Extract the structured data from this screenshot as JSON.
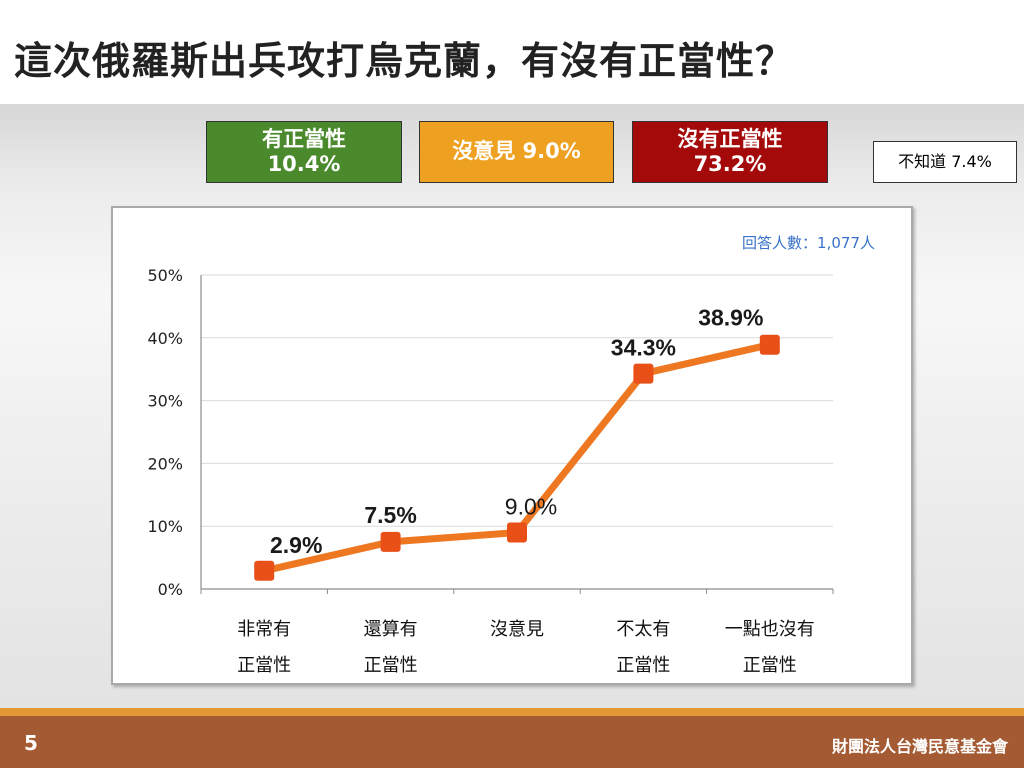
{
  "slide": {
    "title": "這次俄羅斯出兵攻打烏克蘭，有沒有正當性？",
    "page_number": "5",
    "organization": "財團法人台灣民意基金會"
  },
  "summary": {
    "legit": {
      "line1": "有正當性",
      "line2": "10.4%",
      "color": "#4a8a2c"
    },
    "no_opinion": {
      "text": "沒意見 9.0%",
      "color": "#eea020"
    },
    "illegit": {
      "line1": "沒有正當性",
      "line2": "73.2%",
      "color": "#a50a0a"
    },
    "dont_know": {
      "text": "不知道 7.4%"
    }
  },
  "chart_data": {
    "type": "line",
    "respondents_note": "回答人數：1,077人",
    "categories": [
      [
        "非常有",
        "正當性"
      ],
      [
        "還算有",
        "正當性"
      ],
      [
        "沒意見"
      ],
      [
        "不太有",
        "正當性"
      ],
      [
        "一點也沒有",
        "正當性"
      ]
    ],
    "values": [
      2.9,
      7.5,
      9.0,
      34.3,
      38.9
    ],
    "data_labels": [
      "2.9%",
      "7.5%",
      "9.0%",
      "34.3%",
      "38.9%"
    ],
    "y_ticks": [
      "0%",
      "10%",
      "20%",
      "30%",
      "40%",
      "50%"
    ],
    "ylim": [
      0,
      50
    ],
    "grid": true,
    "line_color": "#ee7722",
    "marker_color": "#e85018",
    "respondents_color": "#3a72c9"
  }
}
